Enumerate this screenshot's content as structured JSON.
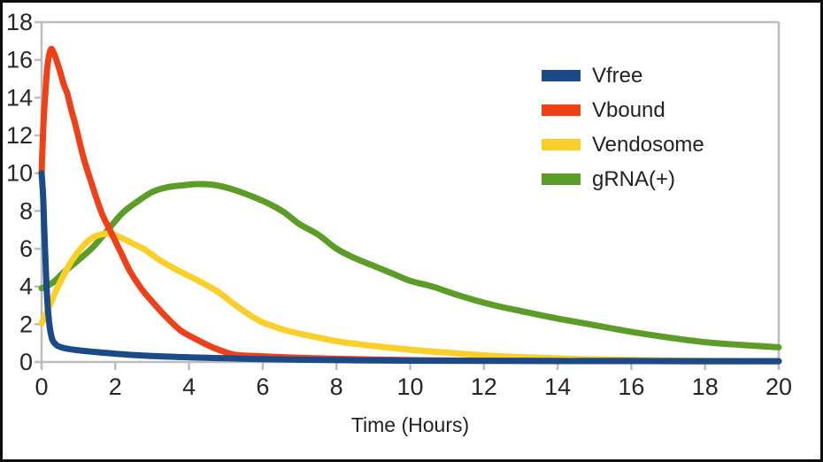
{
  "frame": {
    "border_color": "#0d0d0d",
    "background": "#ffffff"
  },
  "chart_data": {
    "type": "line",
    "title": "",
    "xlabel": "Time (Hours)",
    "ylabel": "",
    "xlim": [
      0,
      20
    ],
    "ylim": [
      0,
      18
    ],
    "xticks": [
      0,
      2,
      4,
      6,
      8,
      10,
      12,
      14,
      16,
      18,
      20
    ],
    "yticks": [
      0,
      2,
      4,
      6,
      8,
      10,
      12,
      14,
      16,
      18
    ],
    "grid": "off (plot box border only: top and right light-gray lines)",
    "legend_position": "upper-right-inside",
    "axis_color": "#bdbdbd",
    "tick_label_color": "#262626",
    "line_width": 7,
    "series": [
      {
        "name": "Vfree",
        "color": "#1b4a88",
        "points": [
          [
            0,
            10
          ],
          [
            0.04,
            8.8
          ],
          [
            0.07,
            7.2
          ],
          [
            0.1,
            5.6
          ],
          [
            0.13,
            4.2
          ],
          [
            0.16,
            3.1
          ],
          [
            0.2,
            2.2
          ],
          [
            0.24,
            1.6
          ],
          [
            0.3,
            1.15
          ],
          [
            0.4,
            0.9
          ],
          [
            0.5,
            0.8
          ],
          [
            0.7,
            0.7
          ],
          [
            1,
            0.62
          ],
          [
            1.5,
            0.52
          ],
          [
            2,
            0.44
          ],
          [
            2.5,
            0.37
          ],
          [
            3,
            0.32
          ],
          [
            3.5,
            0.28
          ],
          [
            4,
            0.25
          ],
          [
            4.5,
            0.22
          ],
          [
            5,
            0.2
          ],
          [
            6,
            0.15
          ],
          [
            7,
            0.12
          ],
          [
            8,
            0.1
          ],
          [
            9,
            0.08
          ],
          [
            10,
            0.07
          ],
          [
            11,
            0.065
          ],
          [
            12,
            0.06
          ],
          [
            13,
            0.055
          ],
          [
            14,
            0.05
          ],
          [
            15,
            0.05
          ],
          [
            16,
            0.05
          ],
          [
            17,
            0.045
          ],
          [
            18,
            0.04
          ],
          [
            19,
            0.04
          ],
          [
            20,
            0.04
          ]
        ]
      },
      {
        "name": "Vbound",
        "color": "#f04018",
        "points": [
          [
            0,
            10
          ],
          [
            0.05,
            12.6
          ],
          [
            0.1,
            14.2
          ],
          [
            0.15,
            15.5
          ],
          [
            0.2,
            16.2
          ],
          [
            0.25,
            16.55
          ],
          [
            0.3,
            16.5
          ],
          [
            0.4,
            16.0
          ],
          [
            0.5,
            15.4
          ],
          [
            0.6,
            14.7
          ],
          [
            0.7,
            14.2
          ],
          [
            0.8,
            13.4
          ],
          [
            0.9,
            12.7
          ],
          [
            1.0,
            11.9
          ],
          [
            1.1,
            11.1
          ],
          [
            1.2,
            10.4
          ],
          [
            1.35,
            9.5
          ],
          [
            1.5,
            8.6
          ],
          [
            1.65,
            7.8
          ],
          [
            1.85,
            7.0
          ],
          [
            2.0,
            6.4
          ],
          [
            2.2,
            5.6
          ],
          [
            2.4,
            4.8
          ],
          [
            2.7,
            3.9
          ],
          [
            3.0,
            3.2
          ],
          [
            3.35,
            2.45
          ],
          [
            3.75,
            1.7
          ],
          [
            4.1,
            1.3
          ],
          [
            4.5,
            0.9
          ],
          [
            4.8,
            0.65
          ],
          [
            5.2,
            0.4
          ],
          [
            5.6,
            0.33
          ],
          [
            6,
            0.3
          ],
          [
            7,
            0.22
          ],
          [
            8,
            0.17
          ],
          [
            9,
            0.13
          ],
          [
            10,
            0.1
          ],
          [
            11,
            0.08
          ],
          [
            12,
            0.07
          ],
          [
            13,
            0.06
          ],
          [
            14,
            0.05
          ],
          [
            15,
            0.05
          ],
          [
            16,
            0.05
          ],
          [
            17,
            0.04
          ],
          [
            18,
            0.04
          ],
          [
            19,
            0.04
          ],
          [
            20,
            0.04
          ]
        ]
      },
      {
        "name": "Vendosome",
        "color": "#f9d02a",
        "points": [
          [
            0,
            2.05
          ],
          [
            0.2,
            2.9
          ],
          [
            0.4,
            3.8
          ],
          [
            0.6,
            4.6
          ],
          [
            0.8,
            5.3
          ],
          [
            1,
            5.85
          ],
          [
            1.2,
            6.3
          ],
          [
            1.4,
            6.6
          ],
          [
            1.6,
            6.75
          ],
          [
            1.8,
            6.8
          ],
          [
            2,
            6.7
          ],
          [
            2.2,
            6.55
          ],
          [
            2.5,
            6.25
          ],
          [
            2.8,
            5.95
          ],
          [
            3.2,
            5.4
          ],
          [
            3.6,
            4.95
          ],
          [
            4,
            4.55
          ],
          [
            4.4,
            4.15
          ],
          [
            4.8,
            3.7
          ],
          [
            5.2,
            3.1
          ],
          [
            5.6,
            2.55
          ],
          [
            6,
            2.1
          ],
          [
            6.5,
            1.75
          ],
          [
            7,
            1.5
          ],
          [
            7.5,
            1.3
          ],
          [
            8,
            1.1
          ],
          [
            9,
            0.85
          ],
          [
            10,
            0.65
          ],
          [
            11,
            0.5
          ],
          [
            12,
            0.35
          ],
          [
            13,
            0.26
          ],
          [
            14,
            0.19
          ],
          [
            15,
            0.14
          ],
          [
            16,
            0.11
          ],
          [
            17,
            0.08
          ],
          [
            18,
            0.06
          ],
          [
            19,
            0.05
          ],
          [
            20,
            0.04
          ]
        ]
      },
      {
        "name": "gRNA(+)",
        "color": "#5c9d28",
        "points": [
          [
            0,
            3.9
          ],
          [
            0.3,
            4.2
          ],
          [
            0.6,
            4.75
          ],
          [
            1,
            5.4
          ],
          [
            1.4,
            6.1
          ],
          [
            1.8,
            7.0
          ],
          [
            2.2,
            7.9
          ],
          [
            2.6,
            8.5
          ],
          [
            3,
            9.0
          ],
          [
            3.4,
            9.25
          ],
          [
            3.8,
            9.35
          ],
          [
            4.2,
            9.42
          ],
          [
            4.6,
            9.4
          ],
          [
            5,
            9.25
          ],
          [
            5.4,
            9.0
          ],
          [
            5.8,
            8.7
          ],
          [
            6.2,
            8.35
          ],
          [
            6.6,
            7.9
          ],
          [
            7,
            7.3
          ],
          [
            7.5,
            6.75
          ],
          [
            8,
            6.0
          ],
          [
            8.5,
            5.5
          ],
          [
            9,
            5.1
          ],
          [
            9.5,
            4.7
          ],
          [
            10,
            4.3
          ],
          [
            10.6,
            4.0
          ],
          [
            11.2,
            3.6
          ],
          [
            11.8,
            3.25
          ],
          [
            12.4,
            2.95
          ],
          [
            13,
            2.7
          ],
          [
            14,
            2.3
          ],
          [
            15,
            1.95
          ],
          [
            16,
            1.6
          ],
          [
            17,
            1.3
          ],
          [
            18,
            1.05
          ],
          [
            19,
            0.9
          ],
          [
            20,
            0.78
          ]
        ]
      }
    ]
  }
}
